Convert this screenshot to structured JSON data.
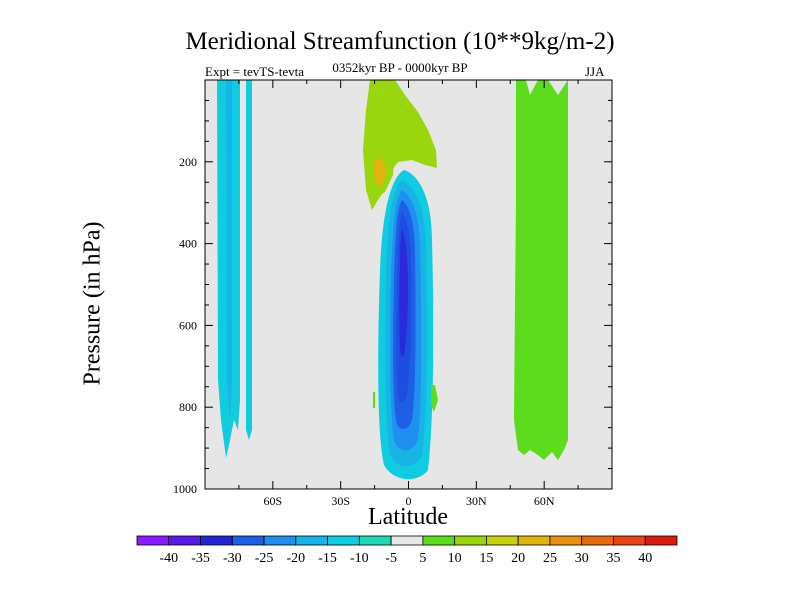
{
  "figure": {
    "title": "Meridional Streamfunction (10**9kg/m-2)",
    "experiment": "Expt = tevTS-tevta",
    "subtitle": "0352kyr BP - 0000kyr BP",
    "season": "JJA"
  },
  "chart_data": {
    "type": "contour",
    "title": "Meridional Streamfunction (10**9kg/m-2)",
    "xlabel": "Latitude",
    "ylabel": "Pressure (in hPa)",
    "xlim": [
      -90,
      90
    ],
    "ylim": [
      0,
      1000
    ],
    "y_inverted": true,
    "x_ticks": [
      {
        "value": -60,
        "label": "60S"
      },
      {
        "value": -30,
        "label": "30S"
      },
      {
        "value": 0,
        "label": "0"
      },
      {
        "value": 30,
        "label": "30N"
      },
      {
        "value": 60,
        "label": "60N"
      }
    ],
    "y_ticks": [
      200,
      400,
      600,
      800,
      1000
    ],
    "background_color": "#e6e6e6",
    "colorbar": {
      "levels": [
        "-40",
        "-35",
        "-30",
        "-25",
        "-20",
        "-15",
        "-10",
        "-5",
        "5",
        "10",
        "15",
        "20",
        "25",
        "30",
        "35",
        "40"
      ],
      "colors": [
        "#8a1aff",
        "#5a1ae6",
        "#2424d4",
        "#1e5fe6",
        "#1f8ff0",
        "#18b4e6",
        "#10cce0",
        "#1ed8b4",
        "#e8e8e8",
        "#5cdc1c",
        "#9ad60e",
        "#c8d010",
        "#e0b40e",
        "#e89010",
        "#e86a10",
        "#e84418",
        "#d81c10"
      ]
    },
    "regions": [
      {
        "name": "southern-band-outer",
        "level": -10,
        "lat": [
          -83,
          -75
        ],
        "p": [
          0,
          915
        ],
        "color": "#10cce0"
      },
      {
        "name": "southern-band-inner",
        "level": -15,
        "lat": [
          -78,
          -76
        ],
        "p": [
          0,
          820
        ],
        "color": "#18b4e6"
      },
      {
        "name": "southern-band-thin",
        "level": -10,
        "lat": [
          -70,
          -68
        ],
        "p": [
          0,
          860
        ],
        "color": "#10cce0"
      },
      {
        "name": "upper-positive-cell",
        "level": 10,
        "lat": [
          -17,
          12
        ],
        "p": [
          0,
          320
        ],
        "color": "#9ad60e"
      },
      {
        "name": "upper-positive-core",
        "level": 20,
        "lat": [
          -14,
          -10
        ],
        "p": [
          170,
          250
        ],
        "color": "#e0b40e"
      },
      {
        "name": "tropical-negative-cell",
        "level": -30,
        "lat": [
          -12,
          8
        ],
        "p": [
          215,
          980
        ],
        "color": "#1e5fe6"
      },
      {
        "name": "tropical-negative-core",
        "level": -35,
        "lat": [
          -3,
          2
        ],
        "p": [
          300,
          650
        ],
        "color": "#2424d4"
      },
      {
        "name": "northern-positive-band",
        "level": 5,
        "lat": [
          47,
          73
        ],
        "p": [
          0,
          940
        ],
        "color": "#5cdc1c"
      }
    ]
  }
}
